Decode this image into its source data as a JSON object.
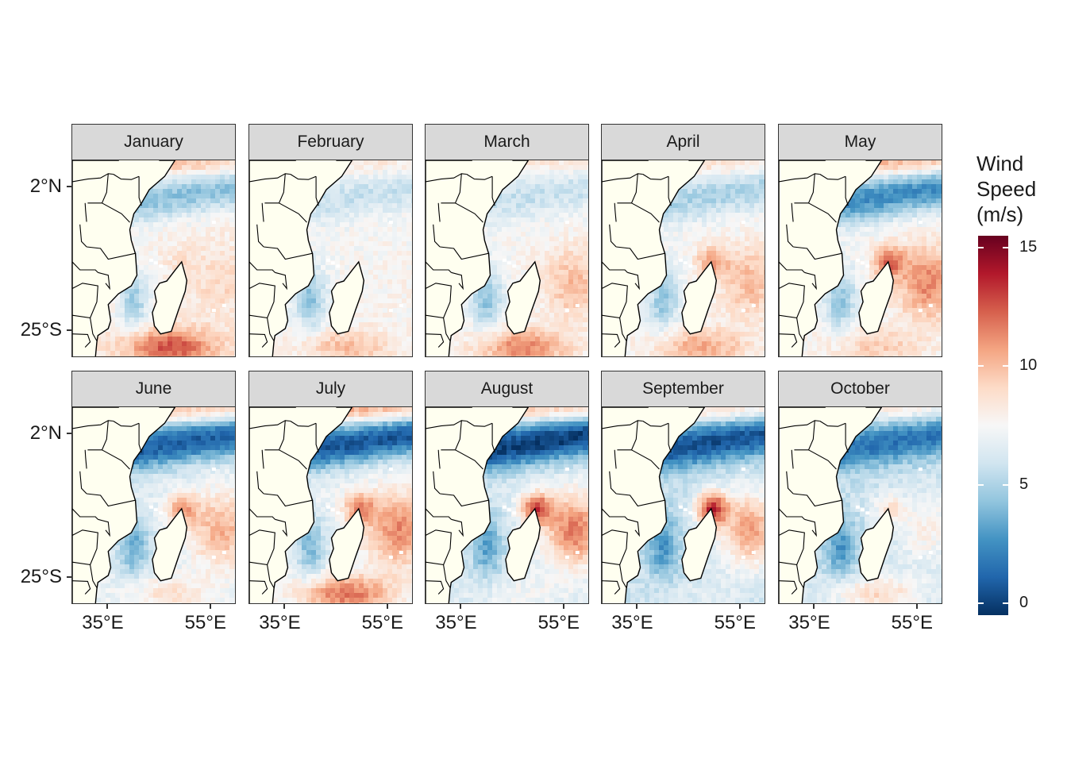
{
  "figure": {
    "panels": [
      {
        "month": "January",
        "pattern": {
          "north_band": -0.5,
          "tip_jet": 0.1,
          "east_high": 0.2,
          "south_high": 0.85,
          "base": 0.05
        }
      },
      {
        "month": "February",
        "pattern": {
          "north_band": -0.25,
          "tip_jet": 0.0,
          "east_high": 0.05,
          "south_high": 0.45,
          "base": 0.0
        }
      },
      {
        "month": "March",
        "pattern": {
          "north_band": -0.25,
          "tip_jet": 0.05,
          "east_high": 0.45,
          "south_high": 0.7,
          "base": 0.0
        }
      },
      {
        "month": "April",
        "pattern": {
          "north_band": -0.35,
          "tip_jet": 0.45,
          "east_high": 0.45,
          "south_high": 0.55,
          "base": 0.0
        }
      },
      {
        "month": "May",
        "pattern": {
          "north_band": -0.7,
          "tip_jet": 0.6,
          "east_high": 0.7,
          "south_high": 0.35,
          "base": 0.0
        }
      },
      {
        "month": "June",
        "pattern": {
          "north_band": -0.8,
          "tip_jet": 0.55,
          "east_high": 0.65,
          "south_high": 0.35,
          "base": -0.1
        }
      },
      {
        "month": "July",
        "pattern": {
          "north_band": -0.9,
          "tip_jet": 0.6,
          "east_high": 0.75,
          "south_high": 0.85,
          "base": -0.05
        }
      },
      {
        "month": "August",
        "pattern": {
          "north_band": -0.9,
          "tip_jet": 0.85,
          "east_high": 0.95,
          "south_high": 0.2,
          "base": -0.15
        }
      },
      {
        "month": "September",
        "pattern": {
          "north_band": -0.75,
          "tip_jet": 1.0,
          "east_high": 0.85,
          "south_high": 0.1,
          "base": -0.2
        }
      },
      {
        "month": "October",
        "pattern": {
          "north_band": -0.6,
          "tip_jet": 0.35,
          "east_high": 0.35,
          "south_high": 0.55,
          "base": -0.2
        }
      }
    ],
    "y_axis_labels": [
      "2°N",
      "25°S"
    ],
    "x_axis_labels": [
      "35°E",
      "55°E"
    ],
    "land_color": "#fffff0"
  },
  "legend": {
    "title_lines": [
      "Wind",
      "Speed",
      "(m/s)"
    ],
    "ticks": [
      "15",
      "10",
      "5",
      "0"
    ],
    "colors": [
      "#053061",
      "#2166ac",
      "#4393c3",
      "#92c5de",
      "#d1e5f0",
      "#f7f7f7",
      "#fddbc7",
      "#f4a582",
      "#d6604d",
      "#b2182b",
      "#67001f"
    ],
    "range": [
      -0.5,
      15.5
    ]
  }
}
